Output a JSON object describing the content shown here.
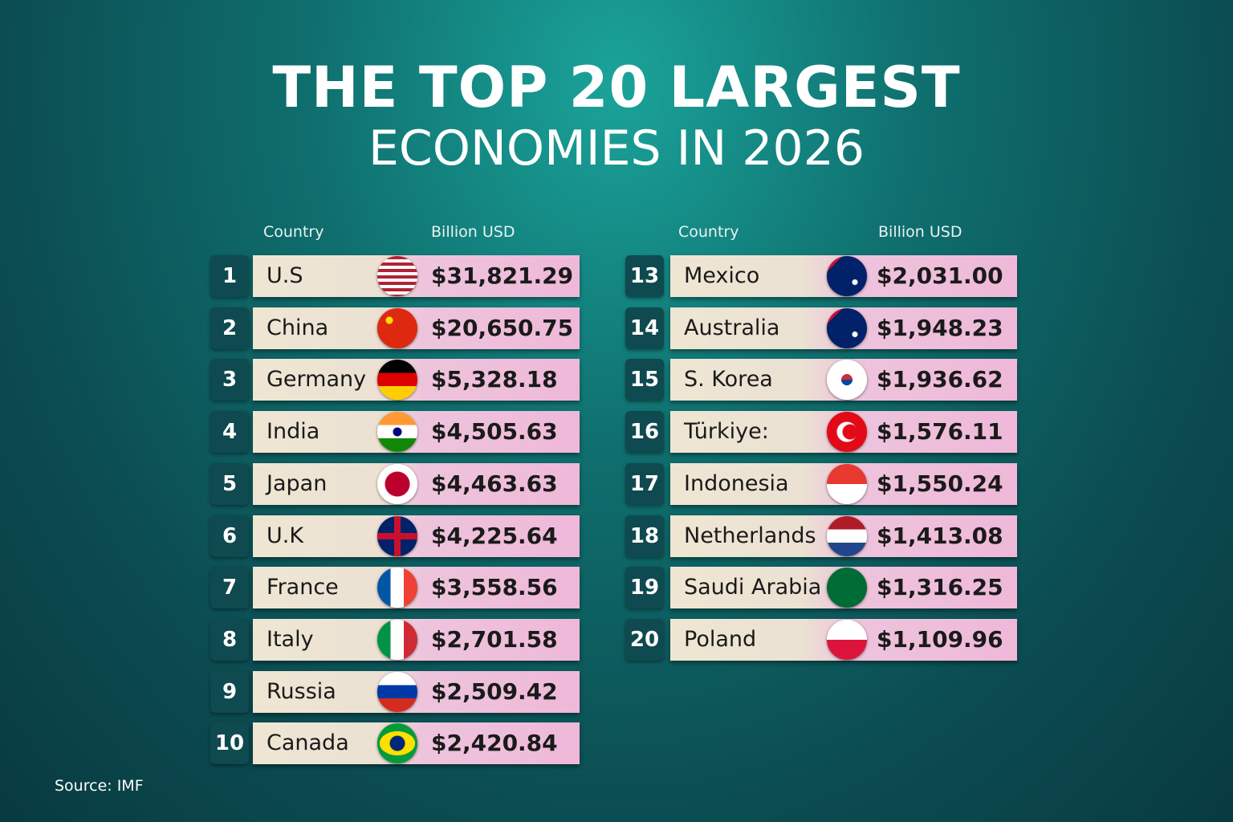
{
  "title": {
    "line1": "THE TOP 20 LARGEST",
    "line2": "ECONOMIES IN 2026"
  },
  "left_table": {
    "header": [
      "Country",
      "Billion USD"
    ],
    "rows": [
      [
        1,
        "U.S",
        "$31,821.29"
      ],
      [
        2,
        "China",
        "$20,650.75"
      ],
      [
        3,
        "Germany",
        "$5,328.18"
      ],
      [
        4,
        "India",
        "$4,505.63"
      ],
      [
        5,
        "Japan",
        "$4,463.63"
      ],
      [
        6,
        "U.K",
        "$4,225.64"
      ],
      [
        7,
        "France",
        "$3,558.56"
      ],
      [
        8,
        "Italy",
        "$2,701.58"
      ],
      [
        9,
        "Russia",
        "$2,509.42"
      ],
      [
        10,
        "Canada",
        "$2,420.84"
      ]
    ]
  },
  "right_table": {
    "header": [
      "Country",
      "Billion USD"
    ],
    "rows": [
      [
        13,
        "Mexico",
        "$2,031.00"
      ],
      [
        14,
        "Australia",
        "$1,948.23"
      ],
      [
        15,
        "S. Korea",
        "$1,936.62"
      ],
      [
        16,
        "Türkiye:",
        "$1,576.11"
      ],
      [
        17,
        "Indonesia",
        "$1,550.24"
      ],
      [
        18,
        "Netherlands",
        "$1,413.08"
      ],
      [
        19,
        "Saudi Arabia",
        "$1,316.25"
      ],
      [
        20,
        "Poland",
        "$1,109.96"
      ]
    ]
  },
  "source": "Source: IMF"
}
